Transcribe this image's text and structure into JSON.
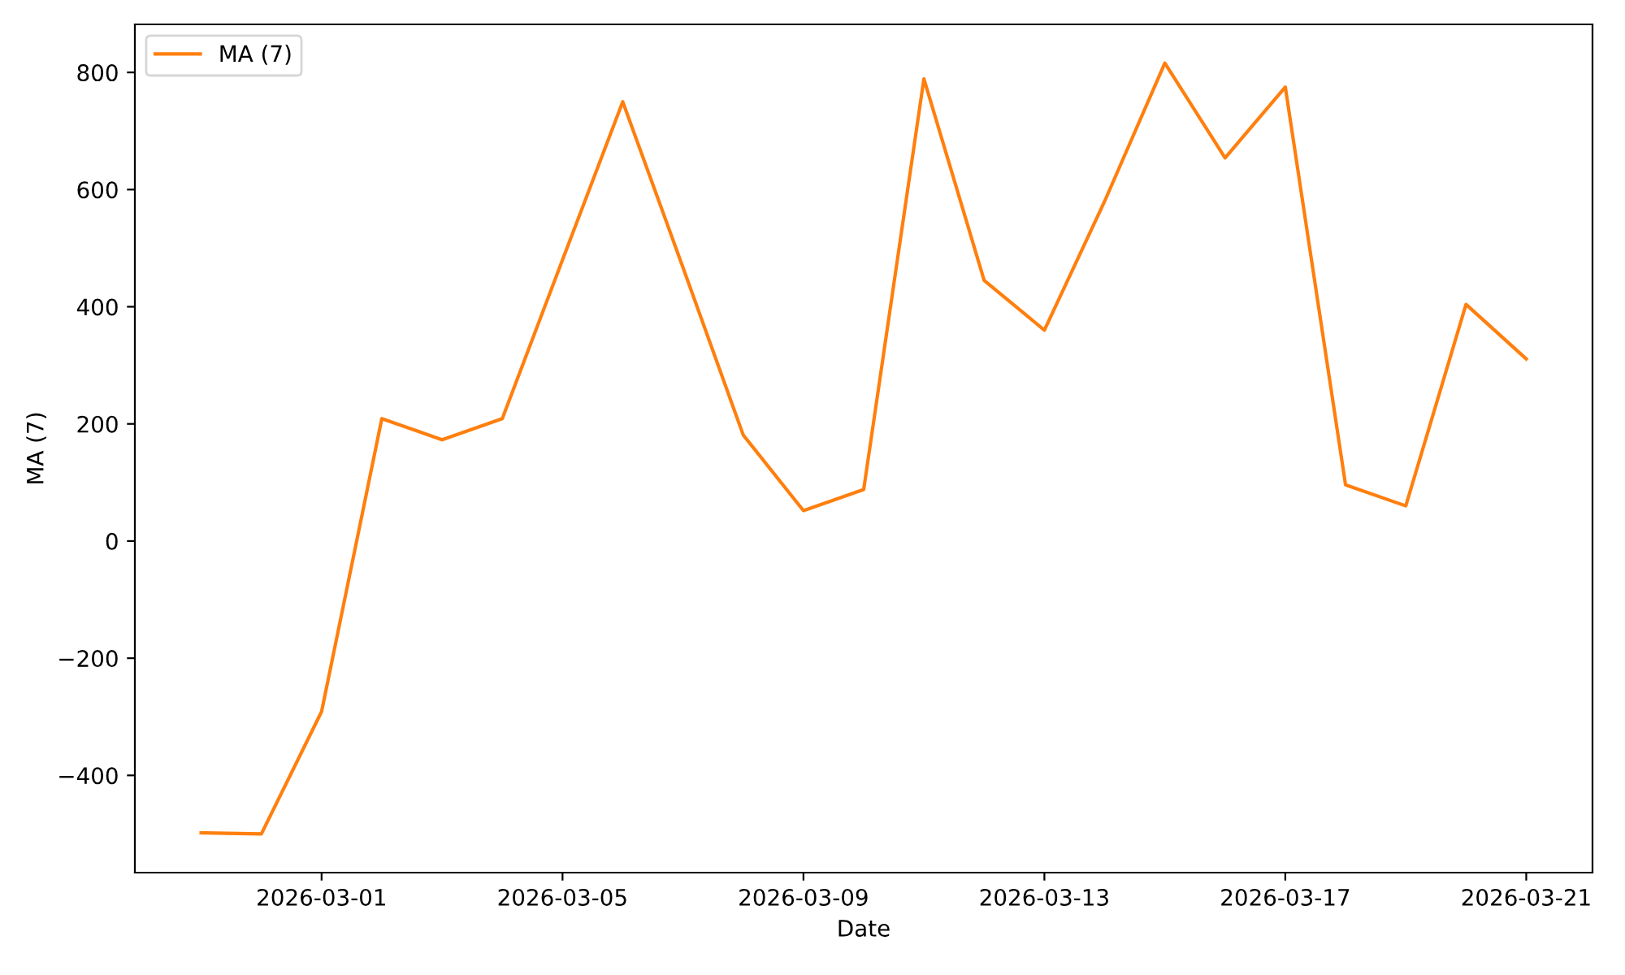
{
  "chart_data": {
    "type": "line",
    "xlabel": "Date",
    "ylabel": "MA (7)",
    "x": [
      "2026-02-27",
      "2026-02-28",
      "2026-03-01",
      "2026-03-02",
      "2026-03-03",
      "2026-03-04",
      "2026-03-05",
      "2026-03-06",
      "2026-03-07",
      "2026-03-08",
      "2026-03-09",
      "2026-03-10",
      "2026-03-11",
      "2026-03-12",
      "2026-03-13",
      "2026-03-14",
      "2026-03-15",
      "2026-03-16",
      "2026-03-17",
      "2026-03-18",
      "2026-03-19",
      "2026-03-20",
      "2026-03-21"
    ],
    "series": [
      {
        "name": "MA (7)",
        "color": "#ff7f0e",
        "values": [
          -498,
          -500,
          -291,
          209,
          173,
          209,
          480,
          750,
          467,
          181,
          52,
          88,
          789,
          445,
          360,
          580,
          816,
          654,
          775,
          96,
          60,
          404,
          311
        ]
      }
    ],
    "xlim": [
      "2026-02-25T21:36",
      "2026-03-22T02:24"
    ],
    "xticks": [
      "2026-03-01",
      "2026-03-05",
      "2026-03-09",
      "2026-03-13",
      "2026-03-17",
      "2026-03-21"
    ],
    "ylim": [
      -566,
      882
    ],
    "yticks": [
      {
        "value": -400,
        "label": "−400"
      },
      {
        "value": -200,
        "label": "−200"
      },
      0,
      200,
      400,
      600,
      800
    ],
    "grid": false,
    "legend": "top left",
    "line_style": "solid",
    "marker": "none"
  }
}
